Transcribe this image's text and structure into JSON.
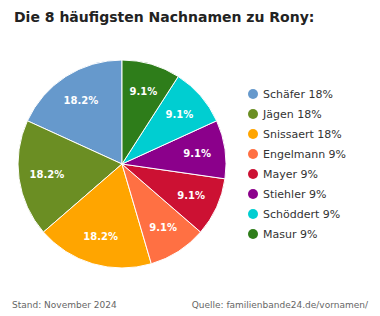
{
  "chart_data": {
    "type": "pie",
    "title": "Die 8 häufigsten Nachnamen zu Rony:",
    "categories": [
      "Schäfer 18%",
      "Jägen 18%",
      "Snissaert 18%",
      "Engelmann 9%",
      "Mayer 9%",
      "Stiehler 9%",
      "Schöddert 9%",
      "Masur 9%"
    ],
    "values": [
      18.2,
      18.2,
      18.2,
      9.1,
      9.1,
      9.1,
      9.1,
      9.1
    ],
    "value_labels": [
      "18.2%",
      "18.2%",
      "18.2%",
      "9.1%",
      "9.1%",
      "9.1%",
      "9.1%",
      "9.1%"
    ],
    "colors": [
      "#6699CC",
      "#6B8E23",
      "#FFA500",
      "#FF7043",
      "#CC1133",
      "#8B008B",
      "#00CED1",
      "#2E7D1A"
    ],
    "data_labels": true,
    "legend": "right",
    "annotations": [
      "Stand: November 2024",
      "Quelle: familienbande24.de/vornamen/"
    ]
  }
}
